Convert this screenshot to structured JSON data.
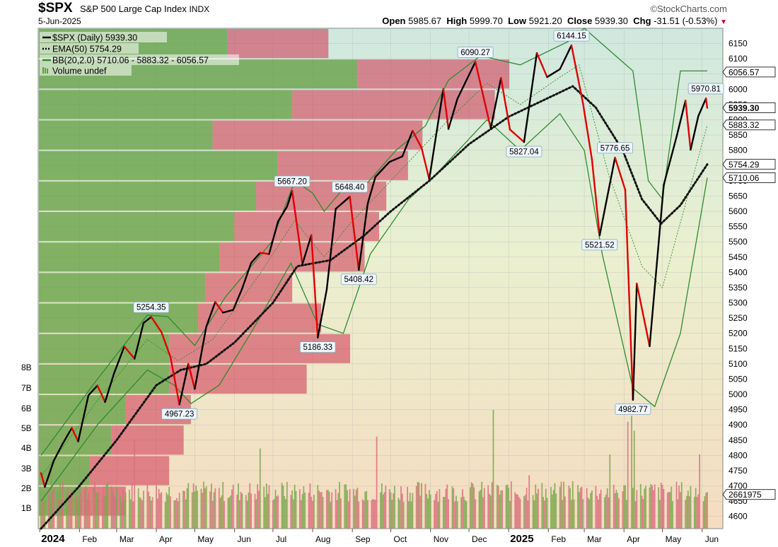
{
  "header": {
    "symbol": "$SPX",
    "name": "S&P 500 Large Cap Index",
    "exchange": "INDX",
    "brand": "©StockCharts.com",
    "date": "5-Jun-2025",
    "open_label": "Open",
    "open": "5985.67",
    "high_label": "High",
    "high": "5999.70",
    "low_label": "Low",
    "low": "5921.20",
    "close_label": "Close",
    "close": "5939.30",
    "chg_label": "Chg",
    "chg": "-31.51 (-0.53%)"
  },
  "legend": [
    {
      "text": "$SPX (Daily) 5939.30",
      "style": "solid-black"
    },
    {
      "text": "EMA(50) 5754.29",
      "style": "dotted-black"
    },
    {
      "text": "BB(20,2.0) 5710.06 - 5883.32 - 6056.57",
      "style": "solid-green"
    },
    {
      "text": "Volume undef",
      "style": "volume-bars"
    }
  ],
  "colors": {
    "up": "#000000",
    "down": "#e00000",
    "bb": "#2e8b2e",
    "vol_up": "#7aa84e",
    "vol_down": "#d9707f"
  },
  "chart_data": {
    "type": "line",
    "x_ticks": [
      "2024",
      "Feb",
      "Mar",
      "Apr",
      "May",
      "Jun",
      "Jul",
      "Aug",
      "Sep",
      "Oct",
      "Nov",
      "Dec",
      "2025",
      "Feb",
      "Mar",
      "Apr",
      "May",
      "Jun"
    ],
    "y_ticks": [
      6150,
      6100,
      6050,
      6000,
      5950,
      5900,
      5850,
      5800,
      5750,
      5700,
      5650,
      5600,
      5550,
      5500,
      5450,
      5400,
      5350,
      5300,
      5250,
      5200,
      5150,
      5100,
      5050,
      5000,
      4950,
      4900,
      4850,
      4800,
      4750,
      4700,
      4650,
      4600
    ],
    "ylim": [
      4560,
      6200
    ],
    "volume_ticks": [
      "8B",
      "7B",
      "6B",
      "5B",
      "4B",
      "3B",
      "2B",
      "1B"
    ],
    "series": [
      {
        "name": "$SPX (Daily)",
        "points": [
          [
            "2024-01-02",
            4742
          ],
          [
            "2024-01-05",
            4697
          ],
          [
            "2024-01-12",
            4783
          ],
          [
            "2024-01-19",
            4839
          ],
          [
            "2024-01-26",
            4890
          ],
          [
            "2024-01-31",
            4846
          ],
          [
            "2024-02-08",
            4997
          ],
          [
            "2024-02-15",
            5029
          ],
          [
            "2024-02-21",
            4975
          ],
          [
            "2024-02-28",
            5069
          ],
          [
            "2024-03-07",
            5157
          ],
          [
            "2024-03-15",
            5117
          ],
          [
            "2024-03-22",
            5234
          ],
          [
            "2024-03-28",
            5254
          ],
          [
            "2024-04-05",
            5204
          ],
          [
            "2024-04-12",
            5123
          ],
          [
            "2024-04-19",
            4967
          ],
          [
            "2024-04-26",
            5100
          ],
          [
            "2024-05-01",
            5018
          ],
          [
            "2024-05-10",
            5222
          ],
          [
            "2024-05-17",
            5303
          ],
          [
            "2024-05-23",
            5268
          ],
          [
            "2024-05-31",
            5277
          ],
          [
            "2024-06-07",
            5347
          ],
          [
            "2024-06-14",
            5431
          ],
          [
            "2024-06-21",
            5464
          ],
          [
            "2024-06-28",
            5460
          ],
          [
            "2024-07-05",
            5567
          ],
          [
            "2024-07-12",
            5615
          ],
          [
            "2024-07-16",
            5667
          ],
          [
            "2024-07-24",
            5427
          ],
          [
            "2024-07-31",
            5522
          ],
          [
            "2024-08-05",
            5186
          ],
          [
            "2024-08-12",
            5344
          ],
          [
            "2024-08-19",
            5608
          ],
          [
            "2024-08-30",
            5648
          ],
          [
            "2024-09-06",
            5408
          ],
          [
            "2024-09-13",
            5626
          ],
          [
            "2024-09-19",
            5713
          ],
          [
            "2024-09-30",
            5762
          ],
          [
            "2024-10-10",
            5780
          ],
          [
            "2024-10-18",
            5864
          ],
          [
            "2024-10-25",
            5808
          ],
          [
            "2024-10-31",
            5705
          ],
          [
            "2024-11-11",
            6001
          ],
          [
            "2024-11-15",
            5870
          ],
          [
            "2024-11-22",
            5969
          ],
          [
            "2024-12-06",
            6090
          ],
          [
            "2024-12-18",
            5872
          ],
          [
            "2024-12-26",
            6037
          ],
          [
            "2025-01-02",
            5868
          ],
          [
            "2025-01-13",
            5827
          ],
          [
            "2025-01-23",
            6119
          ],
          [
            "2025-01-31",
            6040
          ],
          [
            "2025-02-10",
            6066
          ],
          [
            "2025-02-19",
            6144
          ],
          [
            "2025-02-28",
            5954
          ],
          [
            "2025-03-07",
            5770
          ],
          [
            "2025-03-13",
            5521
          ],
          [
            "2025-03-25",
            5776
          ],
          [
            "2025-04-02",
            5670
          ],
          [
            "2025-04-08",
            4982
          ],
          [
            "2025-04-11",
            5363
          ],
          [
            "2025-04-21",
            5158
          ],
          [
            "2025-05-02",
            5686
          ],
          [
            "2025-05-12",
            5844
          ],
          [
            "2025-05-19",
            5963
          ],
          [
            "2025-05-23",
            5802
          ],
          [
            "2025-05-29",
            5912
          ],
          [
            "2025-06-04",
            5970
          ],
          [
            "2025-06-05",
            5939
          ]
        ]
      },
      {
        "name": "EMA(50)",
        "points": [
          [
            "2024-01-02",
            4560
          ],
          [
            "2024-02-01",
            4700
          ],
          [
            "2024-03-01",
            4850
          ],
          [
            "2024-04-01",
            5030
          ],
          [
            "2024-04-20",
            5080
          ],
          [
            "2024-05-10",
            5100
          ],
          [
            "2024-06-01",
            5170
          ],
          [
            "2024-07-01",
            5300
          ],
          [
            "2024-07-20",
            5420
          ],
          [
            "2024-08-15",
            5440
          ],
          [
            "2024-09-10",
            5520
          ],
          [
            "2024-10-01",
            5600
          ],
          [
            "2024-10-31",
            5700
          ],
          [
            "2024-12-01",
            5820
          ],
          [
            "2025-01-01",
            5910
          ],
          [
            "2025-02-10",
            5990
          ],
          [
            "2025-02-20",
            6010
          ],
          [
            "2025-03-10",
            5940
          ],
          [
            "2025-03-31",
            5800
          ],
          [
            "2025-04-15",
            5640
          ],
          [
            "2025-04-30",
            5560
          ],
          [
            "2025-05-15",
            5620
          ],
          [
            "2025-06-05",
            5754
          ]
        ]
      },
      {
        "name": "BB upper",
        "points": [
          [
            "2024-01-02",
            4800
          ],
          [
            "2024-02-15",
            5050
          ],
          [
            "2024-03-25",
            5260
          ],
          [
            "2024-04-10",
            5255
          ],
          [
            "2024-05-01",
            5160
          ],
          [
            "2024-05-25",
            5320
          ],
          [
            "2024-06-30",
            5500
          ],
          [
            "2024-07-18",
            5700
          ],
          [
            "2024-08-01",
            5660
          ],
          [
            "2024-08-10",
            5600
          ],
          [
            "2024-08-28",
            5690
          ],
          [
            "2024-09-10",
            5680
          ],
          [
            "2024-10-05",
            5800
          ],
          [
            "2024-10-28",
            5880
          ],
          [
            "2024-11-15",
            6030
          ],
          [
            "2024-12-10",
            6110
          ],
          [
            "2025-01-10",
            6080
          ],
          [
            "2025-02-18",
            6160
          ],
          [
            "2025-03-01",
            6200
          ],
          [
            "2025-04-08",
            6060
          ],
          [
            "2025-04-20",
            5700
          ],
          [
            "2025-05-01",
            5640
          ],
          [
            "2025-05-15",
            6060
          ],
          [
            "2025-06-05",
            6060
          ]
        ]
      },
      {
        "name": "BB middle",
        "points": [
          [
            "2024-01-02",
            4730
          ],
          [
            "2024-02-15",
            4980
          ],
          [
            "2024-03-25",
            5180
          ],
          [
            "2024-04-18",
            5110
          ],
          [
            "2024-05-15",
            5180
          ],
          [
            "2024-06-20",
            5390
          ],
          [
            "2024-07-18",
            5570
          ],
          [
            "2024-08-10",
            5450
          ],
          [
            "2024-08-28",
            5550
          ],
          [
            "2024-10-01",
            5700
          ],
          [
            "2024-11-15",
            5900
          ],
          [
            "2024-12-15",
            6020
          ],
          [
            "2025-01-10",
            5950
          ],
          [
            "2025-02-10",
            6040
          ],
          [
            "2025-02-25",
            6080
          ],
          [
            "2025-03-20",
            5720
          ],
          [
            "2025-04-15",
            5420
          ],
          [
            "2025-05-01",
            5350
          ],
          [
            "2025-06-05",
            5883
          ]
        ]
      },
      {
        "name": "BB lower",
        "points": [
          [
            "2024-01-02",
            4650
          ],
          [
            "2024-02-15",
            4900
          ],
          [
            "2024-03-25",
            5080
          ],
          [
            "2024-04-15",
            5030
          ],
          [
            "2024-04-28",
            4970
          ],
          [
            "2024-05-20",
            5030
          ],
          [
            "2024-06-15",
            5210
          ],
          [
            "2024-07-15",
            5430
          ],
          [
            "2024-08-05",
            5230
          ],
          [
            "2024-08-25",
            5200
          ],
          [
            "2024-09-15",
            5460
          ],
          [
            "2024-10-15",
            5640
          ],
          [
            "2024-11-05",
            5720
          ],
          [
            "2024-12-15",
            5900
          ],
          [
            "2025-01-10",
            5800
          ],
          [
            "2025-02-10",
            5920
          ],
          [
            "2025-03-01",
            5800
          ],
          [
            "2025-03-15",
            5460
          ],
          [
            "2025-04-08",
            5020
          ],
          [
            "2025-04-25",
            4960
          ],
          [
            "2025-05-15",
            5200
          ],
          [
            "2025-06-05",
            5710
          ]
        ]
      }
    ],
    "annotations": [
      {
        "x": "2024-03-28",
        "y": 5254.35,
        "text": "5254.35"
      },
      {
        "x": "2024-04-19",
        "y": 4967.23,
        "text": "4967.23"
      },
      {
        "x": "2024-07-16",
        "y": 5667.2,
        "text": "5667.20"
      },
      {
        "x": "2024-08-05",
        "y": 5186.33,
        "text": "5186.33"
      },
      {
        "x": "2024-08-30",
        "y": 5648.4,
        "text": "5648.40"
      },
      {
        "x": "2024-09-06",
        "y": 5408.42,
        "text": "5408.42"
      },
      {
        "x": "2024-12-06",
        "y": 6090.27,
        "text": "6090.27"
      },
      {
        "x": "2025-01-13",
        "y": 5827.04,
        "text": "5827.04"
      },
      {
        "x": "2025-02-19",
        "y": 6144.15,
        "text": "6144.15"
      },
      {
        "x": "2025-03-13",
        "y": 5521.52,
        "text": "5521.52"
      },
      {
        "x": "2025-03-25",
        "y": 5776.65,
        "text": "5776.65"
      },
      {
        "x": "2025-04-08",
        "y": 4982.77,
        "text": "4982.77"
      },
      {
        "x": "2025-06-04",
        "y": 5970.81,
        "text": "5970.81"
      }
    ],
    "right_tags": [
      {
        "y": 6056.57,
        "text": "6056.57",
        "bold": false
      },
      {
        "y": 5939.3,
        "text": "5939.30",
        "bold": true
      },
      {
        "y": 5883.32,
        "text": "5883.32",
        "bold": false
      },
      {
        "y": 5754.29,
        "text": "5754.29",
        "bold": false
      },
      {
        "y": 5710.06,
        "text": "5710.06",
        "bold": false
      },
      {
        "y": 4672,
        "text": "2661975",
        "bold": false
      }
    ],
    "volume_by_price": [
      {
        "lo": 6100,
        "hi": 6200,
        "up": 0.26,
        "down": 0.14
      },
      {
        "lo": 6000,
        "hi": 6100,
        "up": 0.44,
        "down": 0.21
      },
      {
        "lo": 5900,
        "hi": 6000,
        "up": 0.35,
        "down": 0.28
      },
      {
        "lo": 5800,
        "hi": 5900,
        "up": 0.24,
        "down": 0.29
      },
      {
        "lo": 5700,
        "hi": 5800,
        "up": 0.33,
        "down": 0.18
      },
      {
        "lo": 5600,
        "hi": 5700,
        "up": 0.3,
        "down": 0.18
      },
      {
        "lo": 5500,
        "hi": 5600,
        "up": 0.27,
        "down": 0.2
      },
      {
        "lo": 5400,
        "hi": 5500,
        "up": 0.25,
        "down": 0.2
      },
      {
        "lo": 5300,
        "hi": 5400,
        "up": 0.23,
        "down": 0.12
      },
      {
        "lo": 5200,
        "hi": 5300,
        "up": 0.22,
        "down": 0.17
      },
      {
        "lo": 5100,
        "hi": 5200,
        "up": 0.18,
        "down": 0.25
      },
      {
        "lo": 5000,
        "hi": 5100,
        "up": 0.18,
        "down": 0.19
      },
      {
        "lo": 4900,
        "hi": 5000,
        "up": 0.12,
        "down": 0.09
      },
      {
        "lo": 4800,
        "hi": 4900,
        "up": 0.1,
        "down": 0.1
      },
      {
        "lo": 4700,
        "hi": 4800,
        "up": 0.07,
        "down": 0.11
      },
      {
        "lo": 4600,
        "hi": 4700,
        "up": 0.06,
        "down": 0.06
      }
    ],
    "volume_spikes": [
      {
        "x": "2024-01-10",
        "v": 0.22,
        "up": true
      },
      {
        "x": "2024-03-15",
        "v": 0.3,
        "up": false
      },
      {
        "x": "2024-06-21",
        "v": 0.27,
        "up": true
      },
      {
        "x": "2024-09-20",
        "v": 0.31,
        "up": false
      },
      {
        "x": "2024-12-20",
        "v": 0.4,
        "up": true
      },
      {
        "x": "2025-01-17",
        "v": 0.18,
        "up": false
      },
      {
        "x": "2025-02-20",
        "v": 0.16,
        "up": true
      },
      {
        "x": "2025-03-21",
        "v": 0.25,
        "up": true
      },
      {
        "x": "2025-04-04",
        "v": 0.36,
        "up": false
      },
      {
        "x": "2025-04-07",
        "v": 0.38,
        "up": true
      },
      {
        "x": "2025-04-09",
        "v": 0.33,
        "up": true
      },
      {
        "x": "2025-05-30",
        "v": 0.25,
        "up": false
      }
    ]
  }
}
